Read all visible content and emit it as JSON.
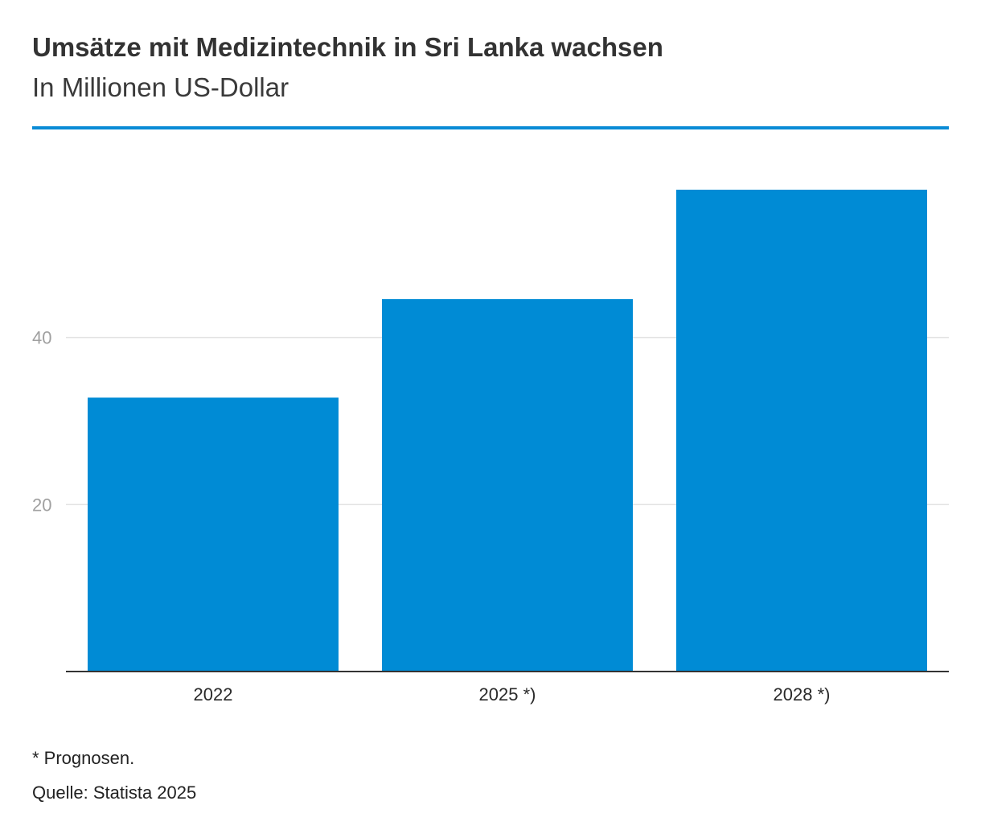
{
  "header": {
    "title": "Umsätze mit Medizintechnik in Sri Lanka wachsen",
    "subtitle": "In Millionen US-Dollar"
  },
  "footer": {
    "footnote": "* Prognosen.",
    "source": "Quelle: Statista 2025"
  },
  "colors": {
    "bar": "#008bd5",
    "accent_rule": "#0a8bd6",
    "gridline": "#e3e3e3",
    "baseline": "#333333"
  },
  "chart_data": {
    "type": "bar",
    "title": "Umsätze mit Medizintechnik in Sri Lanka wachsen",
    "subtitle": "In Millionen US-Dollar",
    "categories": [
      "2022",
      "2025 *)",
      "2028 *)"
    ],
    "values": [
      32.8,
      44.6,
      57.7
    ],
    "ylim": [
      0,
      60
    ],
    "yticks": [
      20,
      40
    ],
    "yticks_labels": [
      "20",
      "40"
    ],
    "grid": true,
    "legend": "none"
  }
}
